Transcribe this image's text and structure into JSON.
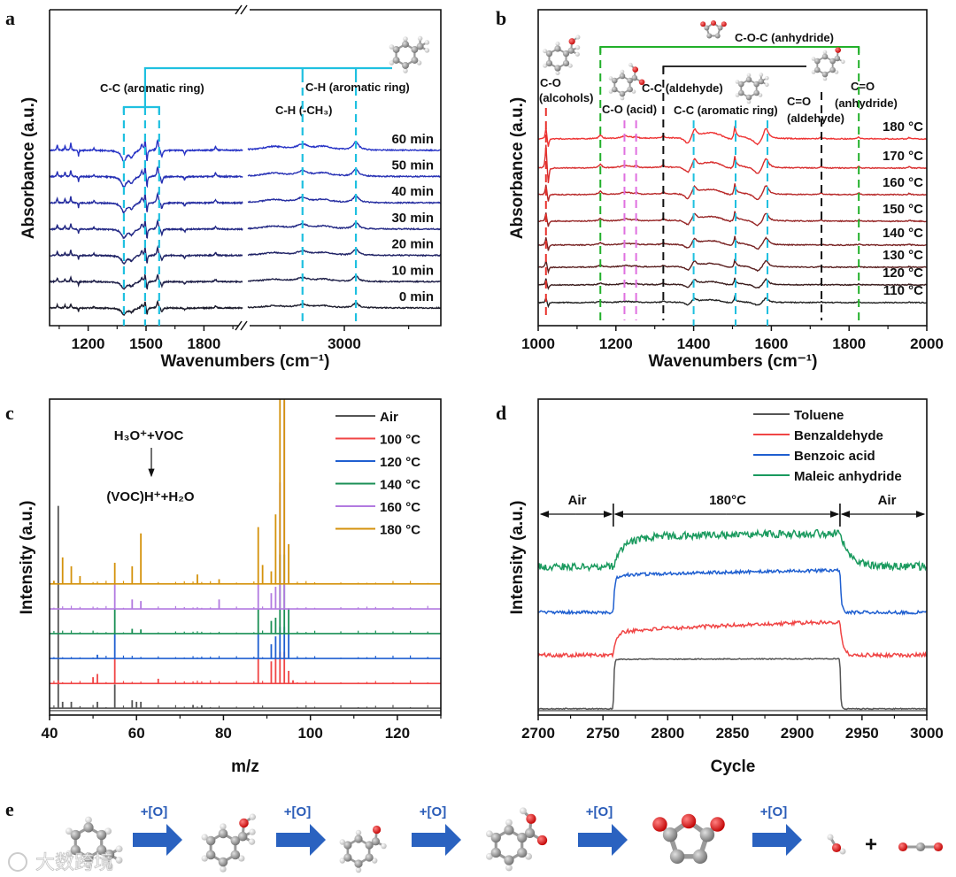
{
  "figure": {
    "panel_labels": [
      "a",
      "b",
      "c",
      "d",
      "e"
    ],
    "watermark": "大数跨境"
  },
  "chart_data": [
    {
      "panel": "a",
      "type": "line",
      "xlabel": "Wavenumbers (cm⁻¹)",
      "ylabel": "Absorbance (a.u.)",
      "x_segments": [
        [
          1000,
          2000
        ],
        [
          2700,
          3300
        ]
      ],
      "axis_break": true,
      "xticks": [
        "1200",
        "1500",
        "1800",
        "3000"
      ],
      "xtick_values": [
        1200,
        1500,
        1800,
        3000
      ],
      "series": [
        {
          "name": "0 min",
          "color": "#1c1c2c"
        },
        {
          "name": "10 min",
          "color": "#1e1f48"
        },
        {
          "name": "20 min",
          "color": "#202366"
        },
        {
          "name": "30 min",
          "color": "#222884"
        },
        {
          "name": "40 min",
          "color": "#242ca0"
        },
        {
          "name": "50 min",
          "color": "#2630b4"
        },
        {
          "name": "60 min",
          "color": "#2834c6"
        }
      ],
      "features_left": [
        [
          1040,
          6,
          3
        ],
        [
          1080,
          5,
          3
        ],
        [
          1110,
          8,
          3
        ],
        [
          1150,
          -7,
          2
        ],
        [
          1230,
          3,
          3
        ],
        [
          1385,
          -12,
          15
        ],
        [
          1425,
          -7,
          12
        ],
        [
          1478,
          7,
          6
        ],
        [
          1495,
          13,
          3
        ],
        [
          1505,
          -14,
          3
        ],
        [
          1560,
          12,
          5
        ],
        [
          1582,
          -8,
          5
        ],
        [
          1700,
          -4,
          4
        ],
        [
          1860,
          4,
          5
        ]
      ],
      "features_right": [
        [
          2780,
          4,
          40
        ],
        [
          2870,
          6,
          20
        ],
        [
          2935,
          4,
          30
        ],
        [
          3036,
          9,
          10
        ]
      ],
      "peak_lines": [
        1385,
        1495,
        1568,
        2870,
        3036
      ],
      "peak_line_color": "#1fc0e0",
      "annotations": {
        "cc_ring": "C-C (aromatic ring)",
        "ch_ring": "C-H (aromatic ring)",
        "ch_methyl": "C-H (-CH₃)"
      }
    },
    {
      "panel": "b",
      "type": "line",
      "xlabel": "Wavenumbers (cm⁻¹)",
      "ylabel": "Absorbance (a.u.)",
      "xlim": [
        1000,
        2000
      ],
      "xticks": [
        "1000",
        "1200",
        "1400",
        "1600",
        "1800",
        "2000"
      ],
      "xtick_values": [
        1000,
        1200,
        1400,
        1600,
        1800,
        2000
      ],
      "series": [
        {
          "name": "110 °C",
          "color": "#222222"
        },
        {
          "name": "120 °C",
          "color": "#3a1c1c"
        },
        {
          "name": "130 °C",
          "color": "#5a1f1f"
        },
        {
          "name": "140 °C",
          "color": "#782222"
        },
        {
          "name": "150 °C",
          "color": "#962525"
        },
        {
          "name": "160 °C",
          "color": "#b82828"
        },
        {
          "name": "170 °C",
          "color": "#d82c2c"
        },
        {
          "name": "180 °C",
          "color": "#ee3232"
        }
      ],
      "features": [
        [
          1020,
          14,
          2
        ],
        [
          1026,
          -10,
          2
        ],
        [
          1160,
          4,
          5
        ],
        [
          1225,
          3,
          15
        ],
        [
          1252,
          2,
          4
        ],
        [
          1322,
          3,
          4
        ],
        [
          1385,
          -9,
          10
        ],
        [
          1402,
          9,
          6
        ],
        [
          1450,
          10,
          45
        ],
        [
          1505,
          12,
          3
        ],
        [
          1565,
          -9,
          12
        ],
        [
          1586,
          13,
          8
        ],
        [
          1728,
          2,
          3
        ],
        [
          1825,
          2,
          3
        ],
        [
          1955,
          1.5,
          3
        ]
      ],
      "peak_lines": [
        {
          "x": 1020,
          "color": "#e8312b",
          "group": "alcohol"
        },
        {
          "x": 1160,
          "color": "#22b02a",
          "group": "anhydride"
        },
        {
          "x": 1222,
          "color": "#e070e0",
          "group": "acid"
        },
        {
          "x": 1252,
          "color": "#e070e0",
          "group": "acid"
        },
        {
          "x": 1322,
          "color": "#111111",
          "group": "aldehyde"
        },
        {
          "x": 1400,
          "color": "#1fc0e0",
          "group": "aromatic"
        },
        {
          "x": 1508,
          "color": "#1fc0e0",
          "group": "aromatic"
        },
        {
          "x": 1590,
          "color": "#1fc0e0",
          "group": "aromatic"
        },
        {
          "x": 1729,
          "color": "#111111",
          "group": "aldehyde"
        },
        {
          "x": 1825,
          "color": "#22b02a",
          "group": "anhydride"
        }
      ],
      "annotations": {
        "coc_anhydride": "C-O-C (anhydride)",
        "co": "C-O",
        "alcohols": "(alcohols)",
        "co_acid": "C-O (acid)",
        "cc_aldehyde": "C-C (aldehyde)",
        "cc_ring": "C-C (aromatic ring)",
        "c_o_ald": "C=O",
        "aldehyde": "(aldehyde)",
        "c_o_anh": "C=O",
        "anhydride": "(anhydride)"
      }
    },
    {
      "panel": "c",
      "type": "bar",
      "xlabel": "m/z",
      "ylabel": "Intensity (a.u.)",
      "xlim": [
        40,
        130
      ],
      "ylim": [
        0,
        100
      ],
      "xticks": [
        "40",
        "60",
        "80",
        "100",
        "120"
      ],
      "xtick_values": [
        40,
        60,
        80,
        100,
        120
      ],
      "legend_position": "top-right",
      "reaction": {
        "top": "H₃O⁺+VOC",
        "bottom": "(VOC)H⁺+H₂O"
      },
      "series": [
        {
          "name": "Air",
          "color": "#555555",
          "baseline": 2.2,
          "peaks": [
            [
              42,
              64
            ],
            [
              43,
              2
            ],
            [
              45,
              2
            ],
            [
              51,
              2
            ],
            [
              55,
              7.5
            ],
            [
              59,
              2.5
            ],
            [
              60,
              2
            ],
            [
              61,
              2
            ],
            [
              73,
              1
            ],
            [
              75,
              0.8
            ]
          ]
        },
        {
          "name": "100 °C",
          "color": "#f04545",
          "baseline": 10,
          "peaks": [
            [
              42,
              1
            ],
            [
              50,
              2
            ],
            [
              51,
              3
            ],
            [
              55,
              8
            ],
            [
              65,
              1.5
            ],
            [
              88,
              8
            ],
            [
              91,
              7
            ],
            [
              92,
              8
            ],
            [
              93,
              10
            ],
            [
              94,
              10
            ],
            [
              95,
              4
            ],
            [
              96,
              1
            ]
          ]
        },
        {
          "name": "120 °C",
          "color": "#1f5fd0",
          "baseline": 17.9,
          "peaks": [
            [
              51,
              1.2
            ],
            [
              55,
              8
            ],
            [
              88,
              8
            ],
            [
              91,
              4.5
            ],
            [
              92,
              7
            ],
            [
              93,
              10
            ],
            [
              94,
              10
            ],
            [
              95,
              8
            ]
          ]
        },
        {
          "name": "140 °C",
          "color": "#1a8f55",
          "baseline": 25.8,
          "peaks": [
            [
              55,
              8
            ],
            [
              59,
              1.5
            ],
            [
              61,
              1.3
            ],
            [
              88,
              8
            ],
            [
              91,
              4
            ],
            [
              92,
              5
            ],
            [
              93,
              25
            ],
            [
              94,
              25
            ],
            [
              95,
              8
            ]
          ]
        },
        {
          "name": "160 °C",
          "color": "#b27ae0",
          "baseline": 33.6,
          "peaks": [
            [
              55,
              8
            ],
            [
              59,
              3
            ],
            [
              61,
              2.5
            ],
            [
              79,
              3
            ],
            [
              88,
              8
            ],
            [
              91,
              5
            ],
            [
              92,
              7
            ],
            [
              93,
              40
            ],
            [
              94,
              66
            ]
          ]
        },
        {
          "name": "180 °C",
          "color": "#d4920c",
          "baseline": 41.5,
          "peaks": [
            [
              41,
              1
            ],
            [
              43,
              8.4
            ],
            [
              45,
              5.6
            ],
            [
              47,
              2.5
            ],
            [
              55,
              6.7
            ],
            [
              59,
              5.6
            ],
            [
              61,
              16
            ],
            [
              74,
              3
            ],
            [
              79,
              1.5
            ],
            [
              88,
              18
            ],
            [
              89,
              6
            ],
            [
              91,
              4
            ],
            [
              92,
              22
            ],
            [
              93,
              66
            ],
            [
              94,
              66
            ],
            [
              95,
              12.6
            ]
          ]
        }
      ]
    },
    {
      "panel": "d",
      "type": "line",
      "xlabel": "Cycle",
      "ylabel": "Intensity (a.u.)",
      "xlim": [
        2700,
        3000
      ],
      "ylim": [
        0,
        100
      ],
      "xticks": [
        "2700",
        "2750",
        "2800",
        "2850",
        "2900",
        "2950",
        "3000"
      ],
      "xtick_values": [
        2700,
        2750,
        2800,
        2850,
        2900,
        2950,
        3000
      ],
      "legend_position": "top-right",
      "switch_on": 2758,
      "switch_off": 2933,
      "regions": {
        "before": "Air",
        "during": "180°C",
        "after": "Air"
      },
      "series": [
        {
          "name": "Toluene",
          "color": "#555555",
          "low": 2,
          "high_start": 17.6,
          "high_end": 17.8,
          "noise": 0.15,
          "rise": 0.5
        },
        {
          "name": "Benzaldehyde",
          "color": "#f04545",
          "low": 19,
          "high_start": 25.5,
          "high_end": 29.5,
          "noise": 0.6,
          "rise": 2
        },
        {
          "name": "Benzoic acid",
          "color": "#1f5fd0",
          "low": 32.5,
          "high_start": 43.8,
          "high_end": 45.8,
          "noise": 0.5,
          "rise": 1
        },
        {
          "name": "Maleic anhydride",
          "color": "#1a9a5e",
          "low": 47,
          "high_start": 56,
          "high_end": 57.5,
          "noise": 1.2,
          "rise": 8
        }
      ]
    }
  ],
  "pathway": {
    "oxidant_label": "+[O]",
    "plus": "+",
    "arrow_color": "#2a62c0",
    "steps": [
      "toluene",
      "benzyl alcohol",
      "benzaldehyde",
      "benzoic acid",
      "maleic anhydride",
      "water + carbon dioxide"
    ]
  }
}
